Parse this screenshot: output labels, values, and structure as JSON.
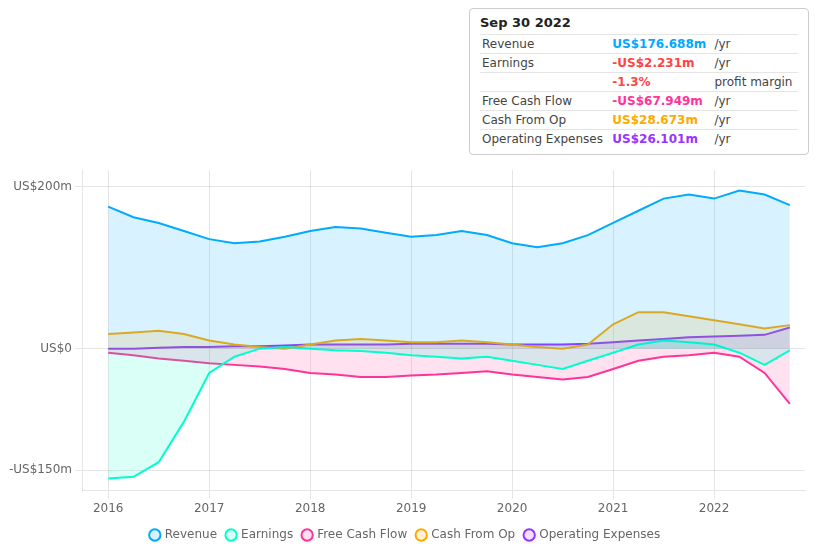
{
  "chart_data": {
    "type": "line",
    "x": [
      2016,
      2016.25,
      2016.5,
      2016.75,
      2017,
      2017.25,
      2017.5,
      2017.75,
      2018,
      2018.25,
      2018.5,
      2018.75,
      2019,
      2019.25,
      2019.5,
      2019.75,
      2020,
      2020.25,
      2020.5,
      2020.75,
      2021,
      2021.25,
      2021.5,
      2021.75,
      2022,
      2022.25,
      2022.5,
      2022.75
    ],
    "series": [
      {
        "name": "Revenue",
        "color": "#00aaff",
        "values": [
          175,
          162,
          155,
          145,
          135,
          130,
          132,
          138,
          145,
          150,
          148,
          143,
          138,
          140,
          145,
          140,
          130,
          125,
          130,
          140,
          155,
          170,
          185,
          190,
          185,
          195,
          190,
          177
        ]
      },
      {
        "name": "Earnings",
        "color": "#00ffcc",
        "values": [
          -160,
          -158,
          -140,
          -90,
          -30,
          -10,
          0,
          2,
          0,
          -2,
          -3,
          -5,
          -8,
          -10,
          -12,
          -10,
          -15,
          -20,
          -25,
          -15,
          -5,
          5,
          10,
          8,
          5,
          -5,
          -20,
          -2
        ]
      },
      {
        "name": "Free Cash Flow",
        "color": "#ff3399",
        "values": [
          -5,
          -8,
          -12,
          -15,
          -18,
          -20,
          -22,
          -25,
          -30,
          -32,
          -35,
          -35,
          -33,
          -32,
          -30,
          -28,
          -32,
          -35,
          -38,
          -35,
          -25,
          -15,
          -10,
          -8,
          -5,
          -10,
          -30,
          -68
        ]
      },
      {
        "name": "Cash From Op",
        "color": "#ffaa00",
        "values": [
          18,
          20,
          22,
          18,
          10,
          5,
          2,
          0,
          5,
          10,
          12,
          10,
          8,
          8,
          10,
          8,
          5,
          2,
          0,
          5,
          30,
          45,
          45,
          40,
          35,
          30,
          25,
          29
        ]
      },
      {
        "name": "Operating Expenses",
        "color": "#9933ff",
        "values": [
          0,
          0,
          1,
          2,
          2,
          3,
          3,
          4,
          5,
          5,
          5,
          5,
          6,
          6,
          6,
          6,
          5,
          5,
          5,
          6,
          8,
          10,
          12,
          14,
          15,
          16,
          17,
          26
        ]
      }
    ],
    "xlim": [
      2015.75,
      2022.9
    ],
    "ylim": [
      -175,
      220
    ],
    "xticks": [
      2016,
      2017,
      2018,
      2019,
      2020,
      2021,
      2022
    ],
    "yticks": [
      {
        "value": -150,
        "label": "-US$150m"
      },
      {
        "value": 0,
        "label": "US$0"
      },
      {
        "value": 200,
        "label": "US$200m"
      }
    ],
    "grid": true,
    "legend": "bottom",
    "annotations": [
      {
        "text": "Sep 30 2022"
      },
      {
        "label": "Revenue",
        "value": "US$176.688m",
        "suffix": "/yr",
        "color": "#00aaff"
      },
      {
        "label": "Earnings",
        "value": "-US$2.231m",
        "suffix": "/yr",
        "color": "#ff4444"
      },
      {
        "value": "-1.3%",
        "suffix": "profit margin",
        "color": "#ff4444"
      },
      {
        "label": "Free Cash Flow",
        "value": "-US$67.949m",
        "suffix": "/yr",
        "color": "#ff3399"
      },
      {
        "label": "Cash From Op",
        "value": "US$28.673m",
        "suffix": "/yr",
        "color": "#ffaa00"
      },
      {
        "label": "Operating Expenses",
        "value": "US$26.101m",
        "suffix": "/yr",
        "color": "#9933ff"
      }
    ]
  }
}
